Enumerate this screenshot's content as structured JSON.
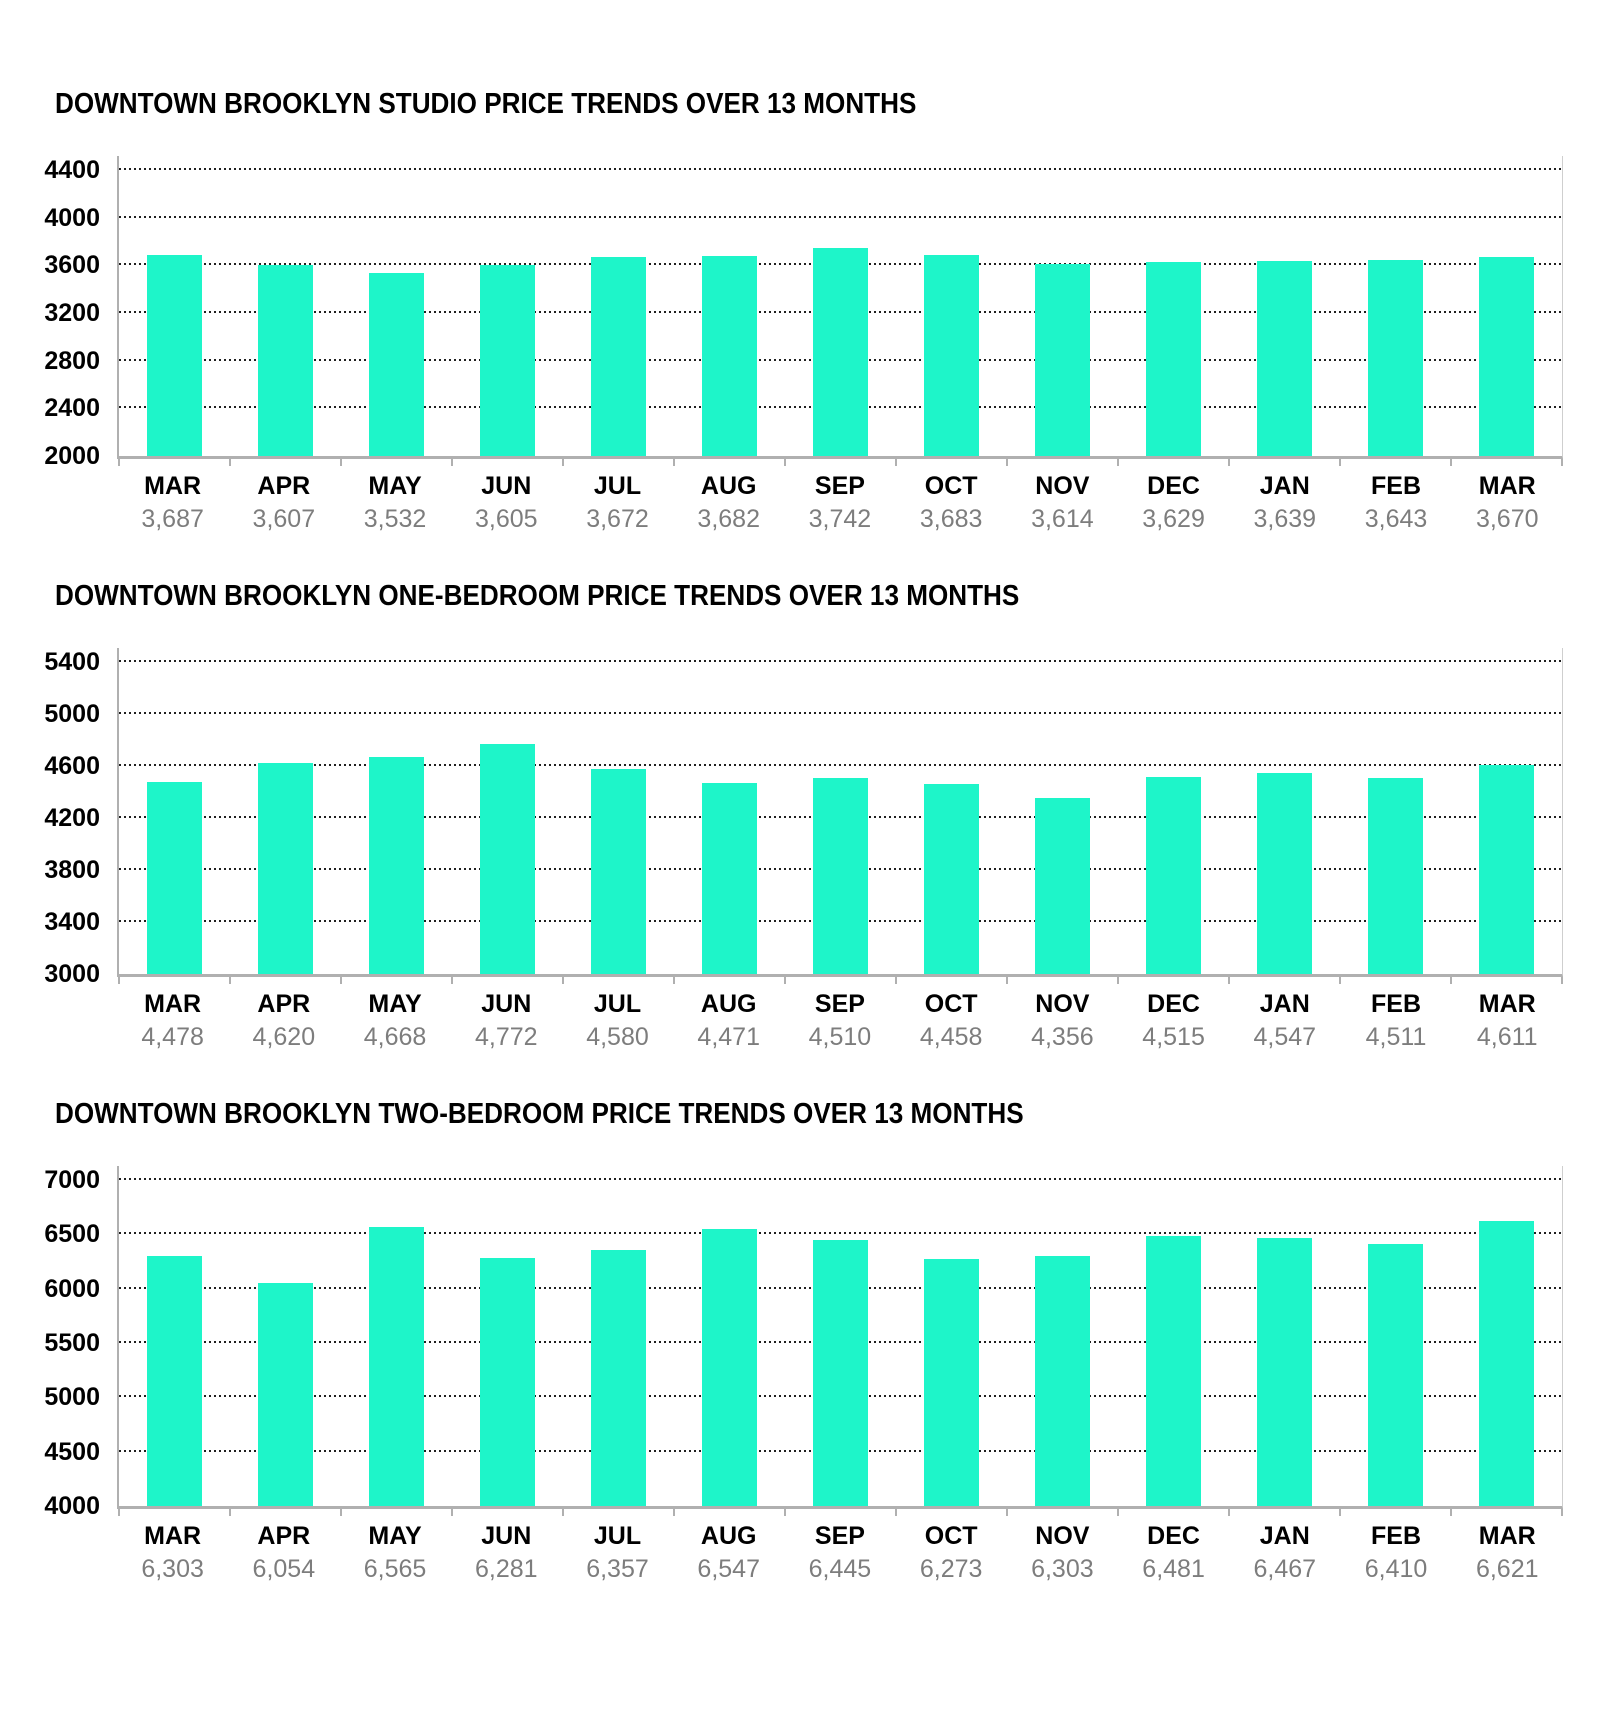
{
  "page": {
    "background": "#ffffff"
  },
  "colors": {
    "bar": "#1ef5c9",
    "axis": "#b0b0b0",
    "gridline": "#1f1f1f",
    "month_label": "#000000",
    "value_label": "#7d7d7d",
    "title": "#000000"
  },
  "chart_data": [
    {
      "type": "bar",
      "title": "DOWNTOWN BROOKLYN STUDIO PRICE TRENDS OVER 13 MONTHS",
      "categories": [
        "MAR",
        "APR",
        "MAY",
        "JUN",
        "JUL",
        "AUG",
        "SEP",
        "OCT",
        "NOV",
        "DEC",
        "JAN",
        "FEB",
        "MAR"
      ],
      "values": [
        3687,
        3607,
        3532,
        3605,
        3672,
        3682,
        3742,
        3683,
        3614,
        3629,
        3639,
        3643,
        3670
      ],
      "value_labels": [
        "3,687",
        "3,607",
        "3,532",
        "3,605",
        "3,672",
        "3,682",
        "3,742",
        "3,683",
        "3,614",
        "3,629",
        "3,639",
        "3,643",
        "3,670"
      ],
      "xlabel": "",
      "ylabel": "",
      "ylim": [
        2000,
        4400
      ],
      "yticks": [
        2000,
        2400,
        2800,
        3200,
        3600,
        4000,
        4400
      ],
      "grid": "dotted-horizontal",
      "legend": "none"
    },
    {
      "type": "bar",
      "title": "DOWNTOWN BROOKLYN ONE-BEDROOM PRICE TRENDS OVER 13 MONTHS",
      "categories": [
        "MAR",
        "APR",
        "MAY",
        "JUN",
        "JUL",
        "AUG",
        "SEP",
        "OCT",
        "NOV",
        "DEC",
        "JAN",
        "FEB",
        "MAR"
      ],
      "values": [
        4478,
        4620,
        4668,
        4772,
        4580,
        4471,
        4510,
        4458,
        4356,
        4515,
        4547,
        4511,
        4611
      ],
      "value_labels": [
        "4,478",
        "4,620",
        "4,668",
        "4,772",
        "4,580",
        "4,471",
        "4,510",
        "4,458",
        "4,356",
        "4,515",
        "4,547",
        "4,511",
        "4,611"
      ],
      "xlabel": "",
      "ylabel": "",
      "ylim": [
        3000,
        5400
      ],
      "yticks": [
        3000,
        3400,
        3800,
        4200,
        4600,
        5000,
        5400
      ],
      "grid": "dotted-horizontal",
      "legend": "none"
    },
    {
      "type": "bar",
      "title": "DOWNTOWN BROOKLYN TWO-BEDROOM PRICE TRENDS OVER 13 MONTHS",
      "categories": [
        "MAR",
        "APR",
        "MAY",
        "JUN",
        "JUL",
        "AUG",
        "SEP",
        "OCT",
        "NOV",
        "DEC",
        "JAN",
        "FEB",
        "MAR"
      ],
      "values": [
        6303,
        6054,
        6565,
        6281,
        6357,
        6547,
        6445,
        6273,
        6303,
        6481,
        6467,
        6410,
        6621
      ],
      "value_labels": [
        "6,303",
        "6,054",
        "6,565",
        "6,281",
        "6,357",
        "6,547",
        "6,445",
        "6,273",
        "6,303",
        "6,481",
        "6,467",
        "6,410",
        "6,621"
      ],
      "xlabel": "",
      "ylabel": "",
      "ylim": [
        4000,
        7000
      ],
      "yticks": [
        4000,
        4500,
        5000,
        5500,
        6000,
        6500,
        7000
      ],
      "grid": "dotted-horizontal",
      "legend": "none"
    }
  ]
}
